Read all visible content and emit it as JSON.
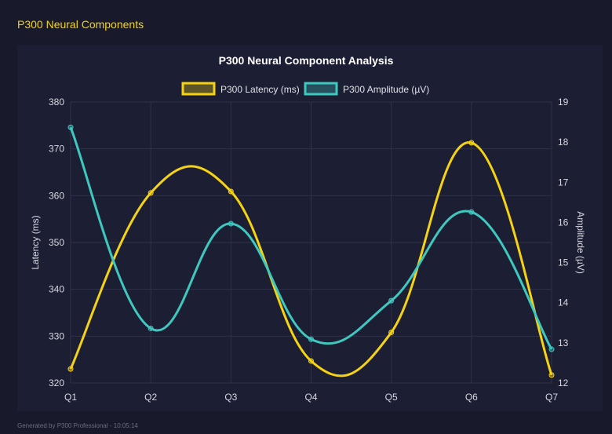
{
  "header": {
    "title": "P300 Neural Components"
  },
  "footer": {
    "text": "Generated by P300 Professional - 10:05:14"
  },
  "chart_data": {
    "type": "line",
    "title": "P300 Neural Component Analysis",
    "categories": [
      "Q1",
      "Q2",
      "Q3",
      "Q4",
      "Q5",
      "Q6",
      "Q7"
    ],
    "series": [
      {
        "name": "P300 Latency (ms)",
        "axis": "left",
        "color": "#f5d312",
        "values": [
          323.0,
          360.6,
          360.9,
          324.7,
          330.8,
          371.3,
          321.7
        ]
      },
      {
        "name": "P300 Amplitude (µV)",
        "axis": "right",
        "color": "#3ec8bf",
        "values": [
          18.37,
          13.36,
          15.97,
          13.09,
          14.05,
          16.26,
          12.84
        ]
      }
    ],
    "ylabel": "Latency (ms)",
    "y2label": "Amplitude (µV)",
    "ylim": [
      320,
      380
    ],
    "y2lim": [
      12,
      19
    ],
    "yticks": [
      "320",
      "330",
      "340",
      "350",
      "360",
      "370",
      "380"
    ],
    "y2ticks": [
      "12",
      "13",
      "14",
      "15",
      "16",
      "17",
      "18",
      "19"
    ],
    "grid": true,
    "legend": "top"
  }
}
